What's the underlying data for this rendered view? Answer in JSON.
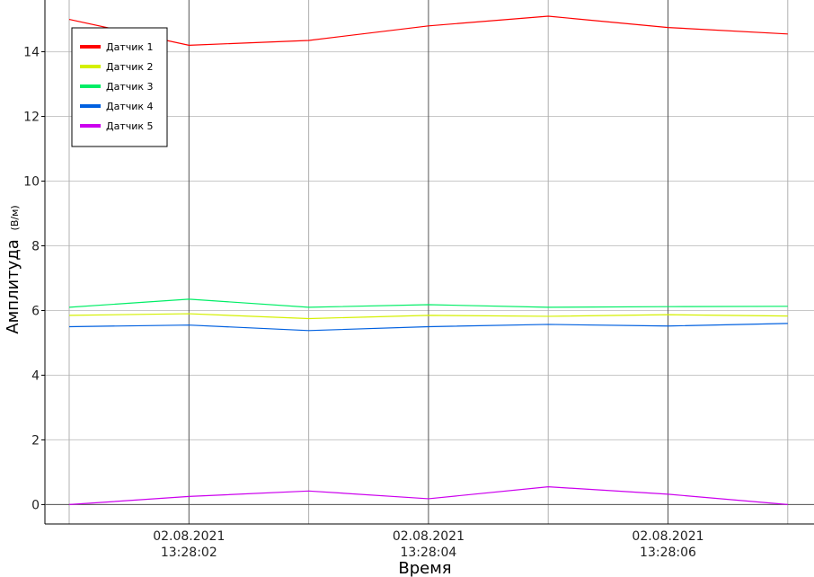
{
  "chart_data": {
    "type": "line",
    "xlabel": "Время",
    "ylabel": "Амплитуда",
    "ylabel_unit": "(В/м)",
    "ylim": [
      -0.6,
      15.6
    ],
    "yticks": [
      0,
      2,
      4,
      6,
      8,
      10,
      12,
      14
    ],
    "grid": true,
    "legend_position": "top-left",
    "x": [
      "13:28:01",
      "13:28:02",
      "13:28:03",
      "13:28:04",
      "13:28:05",
      "13:28:06",
      "13:28:07"
    ],
    "x_tick_labels": [
      {
        "at": "13:28:02",
        "date": "02.08.2021",
        "time": "13:28:02"
      },
      {
        "at": "13:28:04",
        "date": "02.08.2021",
        "time": "13:28:04"
      },
      {
        "at": "13:28:06",
        "date": "02.08.2021",
        "time": "13:28:06"
      }
    ],
    "series": [
      {
        "name": "Датчик 1",
        "color": "#ff0000",
        "values": [
          15.0,
          14.2,
          14.35,
          14.8,
          15.1,
          14.75,
          14.55
        ]
      },
      {
        "name": "Датчик 2",
        "color": "#d4f000",
        "values": [
          5.85,
          5.9,
          5.75,
          5.85,
          5.82,
          5.87,
          5.83
        ]
      },
      {
        "name": "Датчик 3",
        "color": "#00ee66",
        "values": [
          6.1,
          6.35,
          6.1,
          6.18,
          6.1,
          6.12,
          6.13
        ]
      },
      {
        "name": "Датчик 4",
        "color": "#0060e0",
        "values": [
          5.5,
          5.55,
          5.38,
          5.5,
          5.57,
          5.52,
          5.6
        ]
      },
      {
        "name": "Датчик 5",
        "color": "#cc00ee",
        "values": [
          0.0,
          0.25,
          0.42,
          0.18,
          0.55,
          0.32,
          0.0
        ]
      }
    ]
  }
}
